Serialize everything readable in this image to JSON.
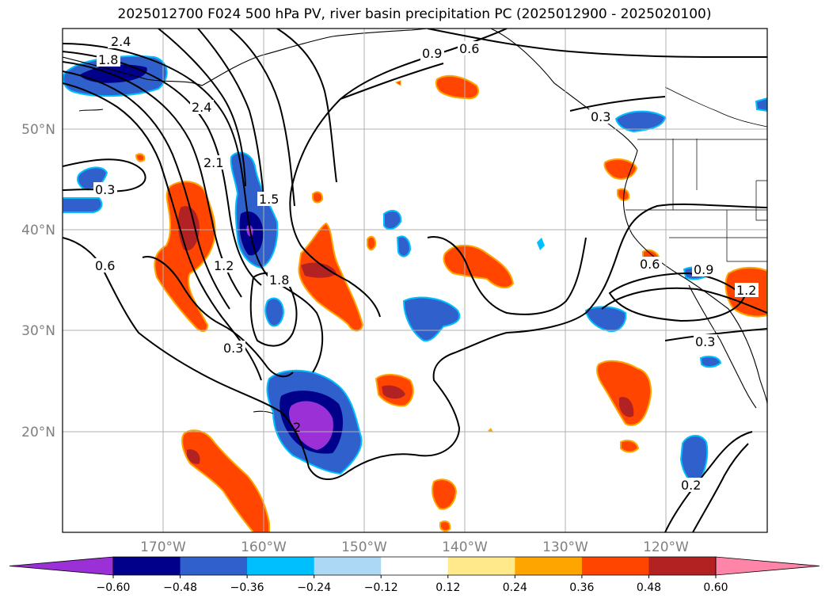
{
  "title": "2025012700 F024 500 hPa PV, river basin precipitation PC (2025012900 - 2025020100)",
  "lon_ticks": [
    "170°W",
    "160°W",
    "150°W",
    "140°W",
    "130°W",
    "120°W"
  ],
  "lat_ticks": [
    "50°N",
    "40°N",
    "30°N",
    "20°N"
  ],
  "contour_labels": [
    "2.4",
    "1.8",
    "2.4",
    "2.1",
    "1.5",
    "1.2",
    "1.8",
    "0.3",
    "0.6",
    "0.3",
    "0.9",
    "0.6",
    "0.3",
    "0.6",
    "0.9",
    "1.2",
    "0.3",
    "0.2",
    "2"
  ],
  "colorbar": {
    "tick_labels": [
      "−0.60",
      "−0.48",
      "−0.36",
      "−0.24",
      "−0.12",
      "0.12",
      "0.24",
      "0.36",
      "0.48",
      "0.60"
    ],
    "colors": [
      "#9b30d6",
      "#00008b",
      "#3060cc",
      "#00bfff",
      "#add8f5",
      "#ffffff",
      "#ffe98a",
      "#ffa500",
      "#ff4500",
      "#b22222",
      "#ff85a8"
    ]
  }
}
